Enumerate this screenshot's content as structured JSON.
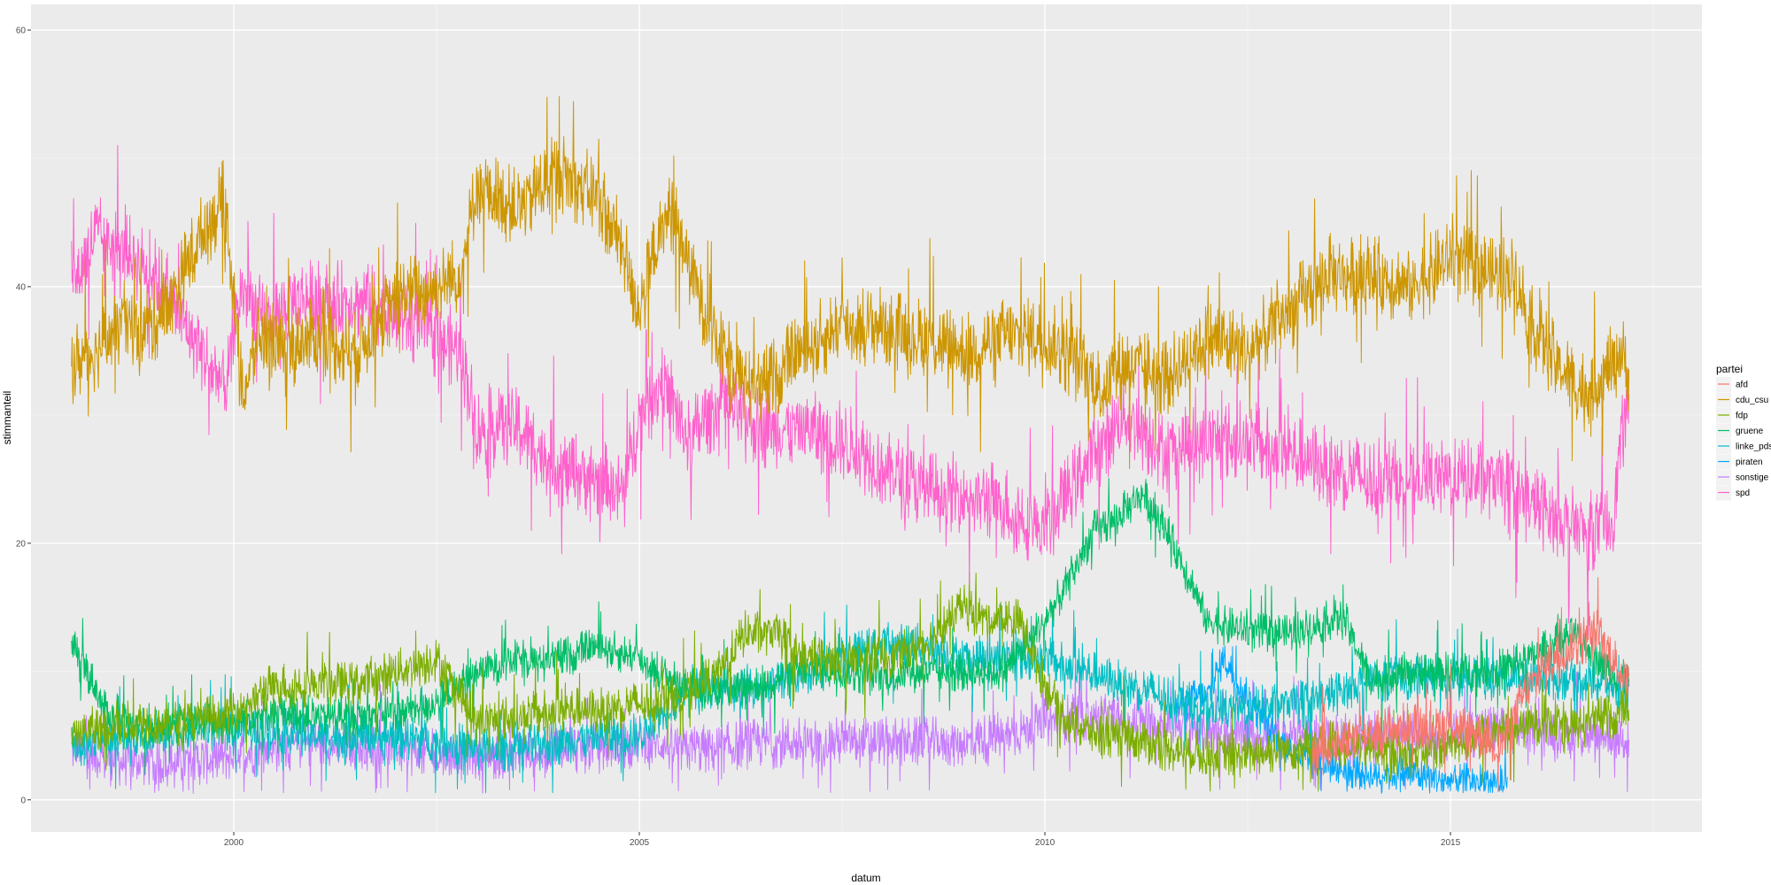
{
  "chart_data": {
    "type": "line",
    "xlabel": "datum",
    "ylabel": "stimmanteil",
    "legend_title": "partei",
    "legend_position": "right",
    "grid": true,
    "xlim": [
      1997.5,
      2018.1
    ],
    "ylim": [
      -2.5,
      62
    ],
    "x_ticks": [
      2000,
      2005,
      2010,
      2015
    ],
    "x_tick_labels": [
      "2000",
      "2005",
      "2010",
      "2015"
    ],
    "y_ticks": [
      0,
      20,
      40,
      60
    ],
    "y_tick_labels": [
      "0",
      "20",
      "40",
      "60"
    ],
    "colors": {
      "afd": "#F8766D",
      "cdu_csu": "#CD9600",
      "fdp": "#7CAE00",
      "gruene": "#00BE67",
      "linke_pds": "#00BFC4",
      "piraten": "#00A9FF",
      "sonstige": "#C77CFF",
      "spd": "#FF61CC"
    },
    "noise_amplitude": {
      "afd": 2.0,
      "cdu_csu": 3.2,
      "fdp": 1.8,
      "gruene": 1.6,
      "linke_pds": 1.8,
      "piraten": 1.4,
      "sonstige": 2.0,
      "spd": 3.2
    },
    "series": [
      {
        "name": "afd",
        "x": [
          2013.3,
          2013.8,
          2014.3,
          2014.8,
          2015.3,
          2015.6,
          2015.9,
          2016.2,
          2016.5,
          2016.8,
          2017.0,
          2017.2
        ],
        "y": [
          3.5,
          5,
          5.5,
          6,
          5.5,
          4,
          8,
          10.5,
          12,
          13,
          11,
          9
        ]
      },
      {
        "name": "cdu_csu",
        "x": [
          1998.0,
          1998.3,
          1998.6,
          1999.0,
          1999.3,
          1999.6,
          1999.9,
          2000.1,
          2000.3,
          2000.6,
          2001.0,
          2001.5,
          2002.0,
          2002.5,
          2002.8,
          2003.0,
          2003.5,
          2004.0,
          2004.5,
          2004.8,
          2005.0,
          2005.2,
          2005.4,
          2005.7,
          2006.0,
          2006.5,
          2007.0,
          2007.5,
          2008.0,
          2008.5,
          2009.0,
          2009.5,
          2010.0,
          2010.4,
          2010.7,
          2011.0,
          2011.5,
          2012.0,
          2012.5,
          2013.0,
          2013.5,
          2014.0,
          2014.5,
          2015.0,
          2015.5,
          2015.8,
          2016.0,
          2016.3,
          2016.6,
          2016.9,
          2017.1,
          2017.2
        ],
        "y": [
          34,
          35,
          37,
          37,
          40,
          44,
          47,
          31,
          36,
          35,
          36,
          35,
          39,
          40,
          41,
          48,
          46,
          49,
          47,
          43,
          38,
          43,
          46,
          40,
          35,
          32,
          35,
          37,
          37,
          36,
          35,
          36,
          36,
          34,
          32,
          34,
          33,
          36,
          35,
          38,
          41,
          41,
          40,
          42,
          41,
          41,
          37,
          34,
          32,
          33,
          35,
          33
        ]
      },
      {
        "name": "fdp",
        "x": [
          1998.0,
          1998.5,
          1999.0,
          1999.5,
          2000.0,
          2000.5,
          2001.0,
          2001.5,
          2002.0,
          2002.5,
          2002.8,
          2003.0,
          2003.5,
          2004.0,
          2004.5,
          2005.0,
          2005.5,
          2006.0,
          2006.3,
          2006.7,
          2007.0,
          2007.5,
          2008.0,
          2008.5,
          2009.0,
          2009.3,
          2009.7,
          2010.0,
          2010.3,
          2010.7,
          2011.0,
          2011.5,
          2012.0,
          2012.5,
          2013.0,
          2013.5,
          2014.0,
          2014.5,
          2015.0,
          2015.5,
          2016.0,
          2016.5,
          2017.0,
          2017.2
        ],
        "y": [
          5,
          6,
          6,
          6,
          7,
          9,
          9,
          9,
          10,
          11,
          8,
          6,
          6.5,
          7,
          7,
          7.5,
          8,
          10,
          13,
          13,
          11,
          11,
          11,
          12,
          15,
          14,
          14,
          9,
          6,
          5,
          5,
          4,
          3.5,
          3.5,
          4,
          4.5,
          4,
          3.5,
          4.5,
          5,
          6,
          6,
          6.5,
          7
        ]
      },
      {
        "name": "gruene",
        "x": [
          1998.0,
          1998.2,
          1998.4,
          1998.6,
          1999.0,
          1999.5,
          2000.0,
          2000.5,
          2001.0,
          2001.5,
          2002.0,
          2002.5,
          2003.0,
          2003.5,
          2004.0,
          2004.5,
          2005.0,
          2005.5,
          2006.0,
          2006.5,
          2007.0,
          2007.5,
          2008.0,
          2008.5,
          2009.0,
          2009.5,
          2010.0,
          2010.3,
          2010.6,
          2010.9,
          2011.2,
          2011.5,
          2011.8,
          2012.0,
          2012.5,
          2013.0,
          2013.5,
          2013.7,
          2014.0,
          2014.5,
          2015.0,
          2015.5,
          2016.0,
          2016.5,
          2017.0,
          2017.2
        ],
        "y": [
          12,
          10,
          7,
          6,
          6,
          6,
          6,
          7,
          6.5,
          6.5,
          7,
          7.5,
          10,
          11,
          11,
          12,
          11,
          9,
          8.5,
          9,
          10,
          10,
          9.5,
          10,
          10,
          10,
          14,
          17,
          21,
          22,
          24,
          21,
          17,
          14,
          13,
          13,
          14,
          14,
          9.5,
          10,
          10,
          10,
          11,
          13,
          10,
          9
        ]
      },
      {
        "name": "linke_pds",
        "x": [
          1998.0,
          1998.5,
          1999.0,
          1999.5,
          2000.0,
          2000.5,
          2001.0,
          2001.5,
          2002.0,
          2002.5,
          2003.0,
          2003.5,
          2004.0,
          2004.5,
          2005.0,
          2005.3,
          2005.6,
          2006.0,
          2006.5,
          2007.0,
          2007.5,
          2008.0,
          2008.5,
          2009.0,
          2009.5,
          2010.0,
          2010.5,
          2011.0,
          2011.5,
          2012.0,
          2012.5,
          2013.0,
          2013.5,
          2014.0,
          2014.5,
          2015.0,
          2015.5,
          2016.0,
          2016.5,
          2017.0,
          2017.2
        ],
        "y": [
          4,
          5,
          5,
          5.5,
          5.5,
          5.5,
          5,
          5,
          5,
          4.5,
          4,
          4,
          4.5,
          5,
          5,
          7,
          9,
          8.5,
          9,
          10,
          11,
          12,
          12,
          11,
          11,
          11,
          10,
          9,
          8,
          7,
          7,
          7.5,
          8,
          9.5,
          9.5,
          9.5,
          9.5,
          9.5,
          9.5,
          9,
          8
        ]
      },
      {
        "name": "piraten",
        "x": [
          2011.6,
          2011.8,
          2012.0,
          2012.2,
          2012.4,
          2012.6,
          2012.8,
          2013.0,
          2013.3,
          2013.6,
          2014.0,
          2014.5,
          2015.0,
          2015.5,
          2015.7
        ],
        "y": [
          7,
          8,
          8,
          11,
          9,
          7,
          5,
          4,
          3,
          2.5,
          2,
          2,
          1.5,
          1.5,
          1.2
        ]
      },
      {
        "name": "sonstige",
        "x": [
          1998.0,
          1998.5,
          1999.0,
          1999.5,
          2000.0,
          2000.5,
          2001.0,
          2001.5,
          2002.0,
          2002.5,
          2003.0,
          2003.5,
          2004.0,
          2004.5,
          2005.0,
          2005.5,
          2006.0,
          2006.5,
          2007.0,
          2007.5,
          2008.0,
          2008.5,
          2009.0,
          2009.5,
          2010.0,
          2010.5,
          2011.0,
          2011.5,
          2012.0,
          2012.5,
          2013.0,
          2013.5,
          2014.0,
          2014.5,
          2015.0,
          2015.5,
          2016.0,
          2016.5,
          2017.0,
          2017.2
        ],
        "y": [
          4,
          3,
          3,
          3,
          3.5,
          4,
          4.5,
          4,
          4,
          3.5,
          3.5,
          3.5,
          4,
          4,
          4.5,
          4,
          4,
          4.5,
          4.5,
          4.5,
          4.5,
          4.5,
          4.5,
          5,
          6,
          6.5,
          6,
          6,
          5.5,
          5,
          5,
          5,
          5,
          5,
          5,
          5.5,
          5.5,
          5,
          5,
          5
        ]
      },
      {
        "name": "spd",
        "x": [
          1998.0,
          1998.3,
          1998.6,
          1999.0,
          1999.3,
          1999.6,
          1999.9,
          2000.1,
          2000.4,
          2000.7,
          2001.0,
          2001.5,
          2002.0,
          2002.5,
          2002.8,
          2003.0,
          2003.5,
          2004.0,
          2004.5,
          2004.8,
          2005.0,
          2005.3,
          2005.6,
          2006.0,
          2006.5,
          2007.0,
          2007.5,
          2008.0,
          2008.5,
          2009.0,
          2009.5,
          2010.0,
          2010.3,
          2010.6,
          2011.0,
          2011.5,
          2012.0,
          2012.5,
          2013.0,
          2013.5,
          2014.0,
          2014.5,
          2015.0,
          2015.5,
          2015.8,
          2016.0,
          2016.3,
          2016.6,
          2016.9,
          2017.0,
          2017.1,
          2017.2
        ],
        "y": [
          40,
          44,
          43,
          41,
          38,
          35,
          32,
          40,
          37,
          39,
          39,
          39,
          38,
          36,
          35,
          29,
          29,
          26,
          25,
          24,
          30,
          33,
          28,
          31,
          29,
          29,
          28,
          26,
          24,
          24,
          23,
          21,
          24,
          27,
          30,
          27,
          28,
          28,
          27,
          26,
          25,
          25,
          25,
          25,
          24,
          23,
          22,
          21,
          21,
          22,
          28,
          31
        ]
      }
    ]
  }
}
